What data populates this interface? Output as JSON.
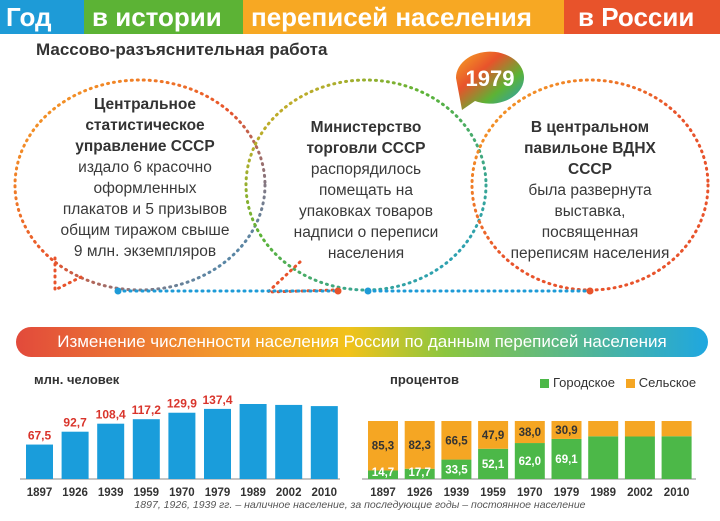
{
  "header": {
    "part1": "Год",
    "part2": "в истории",
    "part3": "переписей населения",
    "part4": "в России",
    "colors": [
      "#1e9bd7",
      "#5cb335",
      "#f7a823",
      "#e8532b"
    ]
  },
  "subtitle": "Массово-разъяснительная работа",
  "year_badge": "1979",
  "bubbles": [
    {
      "bold": "Центральное статистическое управление СССР",
      "text": "издало 6 красочно оформленных плакатов и 5 призывов общим тиражом свыше 9 млн. экземпляров"
    },
    {
      "bold": "Министерство торговли СССР",
      "text": "распорядилось помещать на упаковках товаров надписи о переписи населения"
    },
    {
      "bold": "В центральном павильоне ВДНХ СССР",
      "text": "была развернута выставка, посвященная переписям населения"
    }
  ],
  "banner": "Изменение численности населения России по данным переписей населения",
  "left_chart_label": "млн. человек",
  "right_chart_label": "процентов",
  "legend": {
    "urban": "Городское",
    "rural": "Сельское",
    "urban_color": "#4cb848",
    "rural_color": "#f5a623"
  },
  "footnote": "1897, 1926, 1939 гг. – наличное население, за последующие годы – постоянное население",
  "chart_data": [
    {
      "type": "bar",
      "ylabel": "млн. человек",
      "categories": [
        "1897",
        "1926",
        "1939",
        "1959",
        "1970",
        "1979",
        "1989",
        "2002",
        "2010"
      ],
      "values": [
        67.5,
        92.7,
        108.4,
        117.2,
        129.9,
        137.4,
        147.0,
        145.2,
        142.9
      ],
      "data_labels": [
        "67,5",
        "92,7",
        "108,4",
        "117,2",
        "129,9",
        "137,4",
        "",
        "",
        ""
      ],
      "bar_color": "#1a9ddb",
      "label_color": "#d9342b"
    },
    {
      "type": "bar",
      "stacked": true,
      "ylabel": "процентов",
      "categories": [
        "1897",
        "1926",
        "1939",
        "1959",
        "1970",
        "1979",
        "1989",
        "2002",
        "2010"
      ],
      "series": [
        {
          "name": "Городское",
          "values": [
            14.7,
            17.7,
            33.5,
            52.1,
            62.0,
            69.1,
            73.6,
            73.3,
            73.7
          ],
          "labels": [
            "14,7",
            "17,7",
            "33,5",
            "52,1",
            "62,0",
            "69,1",
            "",
            "",
            ""
          ]
        },
        {
          "name": "Сельское",
          "values": [
            85.3,
            82.3,
            66.5,
            47.9,
            38.0,
            30.9,
            26.4,
            26.7,
            26.3
          ],
          "labels": [
            "85,3",
            "82,3",
            "66,5",
            "47,9",
            "38,0",
            "30,9",
            "",
            "",
            ""
          ]
        }
      ],
      "ylim": [
        0,
        100
      ]
    }
  ]
}
